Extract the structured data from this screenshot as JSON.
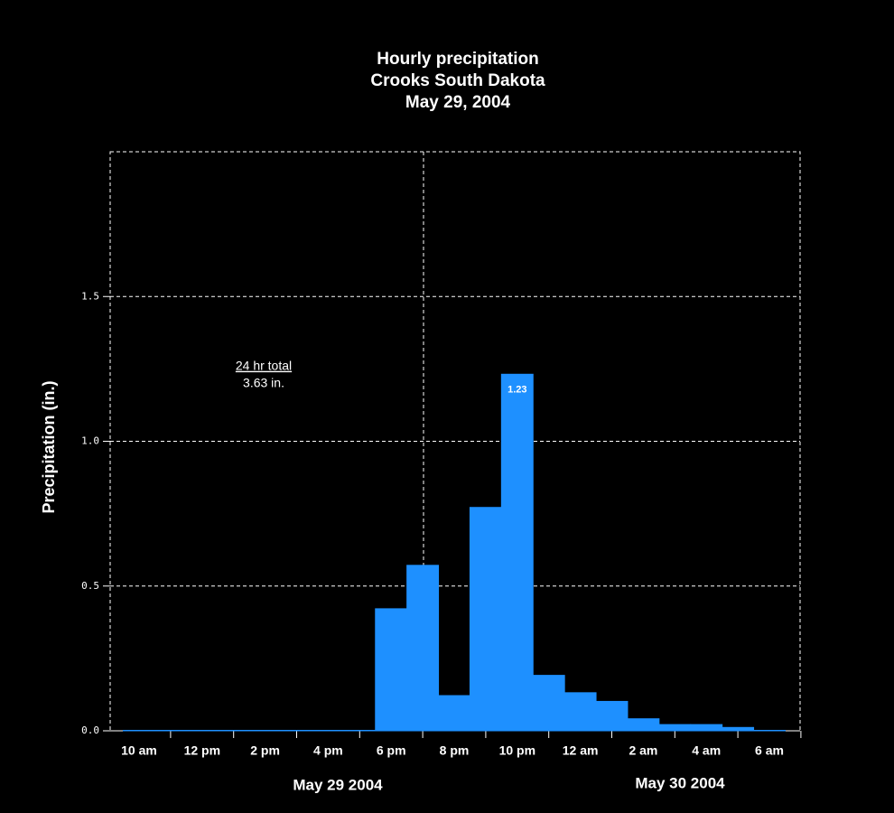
{
  "chart_data": {
    "type": "bar",
    "title": [
      "Hourly precipitation",
      "Crooks South Dakota",
      "May 29, 2004"
    ],
    "y_label": "Precipitation (in.)",
    "categories": [
      "10 am",
      null,
      "12 pm",
      null,
      "2 pm",
      null,
      "4 pm",
      null,
      "6 pm",
      null,
      "8 pm",
      null,
      "10 pm",
      null,
      "12 am",
      null,
      "2 am",
      null,
      "4 am",
      null,
      "6 am"
    ],
    "values": [
      0,
      0,
      0,
      0,
      0,
      0,
      0,
      0,
      0.42,
      0.57,
      0.12,
      0.77,
      1.23,
      0.19,
      0.13,
      0.1,
      0.04,
      0.02,
      0.02,
      0.01,
      0
    ],
    "labeled_value_index": 12,
    "color": "#1e90ff",
    "ylim": [
      0,
      2
    ],
    "yticks": [
      {
        "value": 0,
        "label": "0.0"
      },
      {
        "value": 0.5,
        "label": "0.5"
      },
      {
        "value": 1,
        "label": "1.0"
      },
      {
        "value": 1.5,
        "label": "1.5"
      }
    ],
    "grid": true,
    "annotations": [
      "24 hr total",
      "3.63 in."
    ],
    "date_labels": [
      "May 29 2004",
      "May 30 2004"
    ]
  }
}
